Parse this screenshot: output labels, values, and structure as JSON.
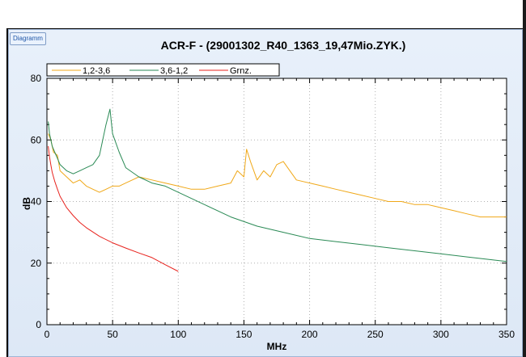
{
  "window": {
    "tab_label": "Diagramm"
  },
  "chart_data": {
    "type": "line",
    "title": "ACR-F - (29001302_R40_1363_19,47Mio.ZYK.)",
    "xlabel": "MHz",
    "ylabel": "dB",
    "xlim": [
      0,
      350
    ],
    "ylim": [
      0,
      80
    ],
    "xticks": [
      0,
      50,
      100,
      150,
      200,
      250,
      300,
      350
    ],
    "yticks": [
      0,
      20,
      40,
      60,
      80
    ],
    "grid": true,
    "legend_position": "top-left",
    "series": [
      {
        "name": "1,2-3,6",
        "color": "#f0a818",
        "x": [
          1,
          3,
          5,
          8,
          10,
          15,
          20,
          25,
          30,
          35,
          40,
          45,
          50,
          55,
          60,
          65,
          70,
          80,
          90,
          100,
          110,
          120,
          130,
          140,
          145,
          150,
          152,
          155,
          160,
          165,
          170,
          175,
          180,
          185,
          190,
          200,
          210,
          220,
          230,
          240,
          250,
          260,
          270,
          280,
          290,
          300,
          310,
          320,
          330,
          340,
          350
        ],
        "y": [
          62,
          60,
          56,
          55,
          50,
          48,
          46,
          47,
          45,
          44,
          43,
          44,
          45,
          45,
          46,
          47,
          48,
          47,
          46,
          45,
          44,
          44,
          45,
          46,
          50,
          48,
          57,
          53,
          47,
          50,
          48,
          52,
          53,
          50,
          47,
          46,
          45,
          44,
          43,
          42,
          41,
          40,
          40,
          39,
          39,
          38,
          37,
          36,
          35,
          35,
          35
        ]
      },
      {
        "name": "3,6-1,2",
        "color": "#2a8a55",
        "x": [
          1,
          2,
          4,
          6,
          8,
          10,
          15,
          20,
          25,
          30,
          35,
          40,
          45,
          48,
          50,
          55,
          60,
          70,
          80,
          90,
          100,
          110,
          120,
          140,
          160,
          180,
          200,
          220,
          240,
          260,
          280,
          300,
          320,
          340,
          350
        ],
        "y": [
          66,
          62,
          58,
          56,
          54,
          52,
          50,
          49,
          50,
          51,
          52,
          55,
          65,
          70,
          62,
          56,
          51,
          48,
          46,
          45,
          43,
          41,
          39,
          35,
          32,
          30,
          28,
          27,
          26,
          25,
          24,
          23,
          22,
          21,
          20.5
        ]
      },
      {
        "name": "Grnz.",
        "color": "#e8231e",
        "x": [
          1,
          2,
          3,
          4,
          6,
          8,
          10,
          15,
          20,
          25,
          30,
          40,
          50,
          60,
          70,
          80,
          90,
          100
        ],
        "y": [
          58,
          54.5,
          51.8,
          49.5,
          46.5,
          44,
          41.7,
          38,
          35.4,
          33.2,
          31.5,
          28.7,
          26.6,
          24.9,
          23.3,
          21.8,
          19.5,
          17.3
        ]
      }
    ]
  }
}
